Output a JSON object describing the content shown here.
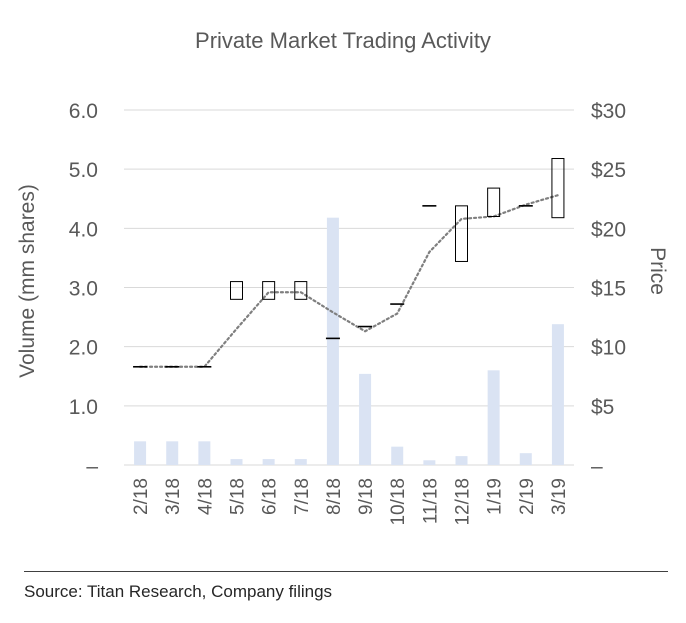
{
  "chart_data": {
    "type": "bar",
    "title": "Private Market Trading Activity",
    "source": "Source: Titan Research, Company filings",
    "categories": [
      "2/18",
      "3/18",
      "4/18",
      "5/18",
      "6/18",
      "7/18",
      "8/18",
      "9/18",
      "10/18",
      "11/18",
      "12/18",
      "1/19",
      "2/19",
      "3/19"
    ],
    "ylabel": "Volume (mm shares)",
    "y2label": "Price",
    "ylim": [
      0,
      6
    ],
    "y2lim": [
      0,
      30
    ],
    "yticks": [
      {
        "v": 0,
        "label": "–"
      },
      {
        "v": 1,
        "label": "1.0"
      },
      {
        "v": 2,
        "label": "2.0"
      },
      {
        "v": 3,
        "label": "3.0"
      },
      {
        "v": 4,
        "label": "4.0"
      },
      {
        "v": 5,
        "label": "5.0"
      },
      {
        "v": 6,
        "label": "6.0"
      }
    ],
    "y2ticks": [
      {
        "v": 0,
        "label": "–"
      },
      {
        "v": 5,
        "label": "$5"
      },
      {
        "v": 10,
        "label": "$10"
      },
      {
        "v": 15,
        "label": "$15"
      },
      {
        "v": 20,
        "label": "$20"
      },
      {
        "v": 25,
        "label": "$25"
      },
      {
        "v": 30,
        "label": "$30"
      }
    ],
    "grid": true,
    "volume": [
      0.4,
      0.4,
      0.4,
      0.1,
      0.1,
      0.1,
      4.18,
      1.54,
      0.31,
      0.08,
      0.15,
      1.6,
      0.2,
      2.38
    ],
    "price_range": [
      {
        "low": 8.3,
        "high": 8.3
      },
      {
        "low": 8.3,
        "high": 8.3
      },
      {
        "low": 8.3,
        "high": 8.3
      },
      {
        "low": 14.0,
        "high": 15.5
      },
      {
        "low": 14.0,
        "high": 15.5
      },
      {
        "low": 14.0,
        "high": 15.5
      },
      {
        "low": 10.7,
        "high": 10.7
      },
      {
        "low": 11.7,
        "high": 11.7
      },
      {
        "low": 13.6,
        "high": 13.6
      },
      {
        "low": 21.9,
        "high": 21.9
      },
      {
        "low": 17.2,
        "high": 21.9
      },
      {
        "low": 21.0,
        "high": 23.4
      },
      {
        "low": 21.9,
        "high": 21.9
      },
      {
        "low": 20.9,
        "high": 25.9
      }
    ],
    "price_trend": [
      8.3,
      8.3,
      8.3,
      11.5,
      14.6,
      14.6,
      12.9,
      11.3,
      12.8,
      18.0,
      20.8,
      21.0,
      22.0,
      22.8
    ],
    "colors": {
      "bar": "#dae3f3",
      "grid": "#d9d9d9",
      "trend": "#7f7f7f",
      "range": "#000000",
      "text": "#595959"
    }
  }
}
